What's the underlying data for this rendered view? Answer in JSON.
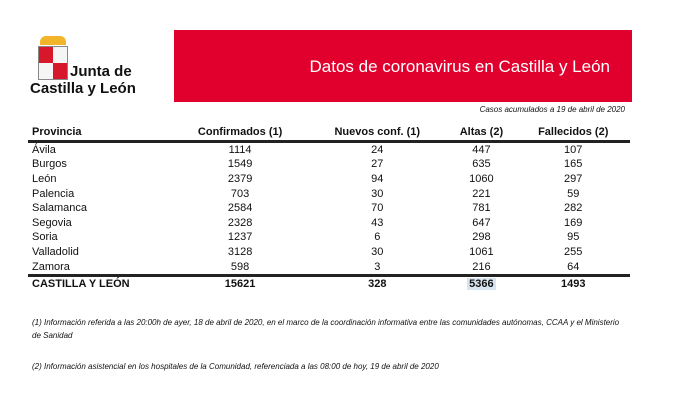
{
  "logo": {
    "line1": "Junta de",
    "line2": "Castilla y León"
  },
  "banner": {
    "title": "Datos de coronavirus en Castilla y León",
    "color": "#e1002d"
  },
  "subtitle": "Casos acumulados a 19 de abril de 2020",
  "table": {
    "headers": [
      "Provincia",
      "Confirmados (1)",
      "Nuevos conf. (1)",
      "Altas (2)",
      "Fallecidos (2)"
    ],
    "rows": [
      [
        "Ávila",
        "1114",
        "24",
        "447",
        "107"
      ],
      [
        "Burgos",
        "1549",
        "27",
        "635",
        "165"
      ],
      [
        "León",
        "2379",
        "94",
        "1060",
        "297"
      ],
      [
        "Palencia",
        "703",
        "30",
        "221",
        "59"
      ],
      [
        "Salamanca",
        "2584",
        "70",
        "781",
        "282"
      ],
      [
        "Segovia",
        "2328",
        "43",
        "647",
        "169"
      ],
      [
        "Soria",
        "1237",
        "6",
        "298",
        "95"
      ],
      [
        "Valladolid",
        "3128",
        "30",
        "1061",
        "255"
      ],
      [
        "Zamora",
        "598",
        "3",
        "216",
        "64"
      ]
    ],
    "total": [
      "CASTILLA Y LEÓN",
      "15621",
      "328",
      "5366",
      "1493"
    ]
  },
  "notes": [
    "(1) Información referida a las 20:00h de ayer, 18 de abril de 2020, en el marco de la coordinación informativa entre las comunidades autónomas, CCAA y el Ministerio de Sanidad",
    "(2) Información asistencial en los hospitales de la Comunidad, referenciada a las 08:00 de hoy, 19 de abril de 2020"
  ]
}
